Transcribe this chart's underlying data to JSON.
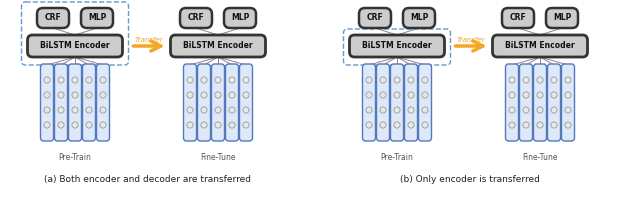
{
  "fig_width": 6.4,
  "fig_height": 2.09,
  "dpi": 100,
  "background": "#ffffff",
  "caption_a": "(a) Both encoder and decoder are transferred",
  "caption_b": "(b) Only encoder is transferred",
  "label_pretrain": "Pre-Train",
  "label_finetune": "Fine-Tune",
  "transfer_label": "Transfer",
  "bilstm_fill": "#cccccc",
  "bilstm_edge": "#333333",
  "crf_mlp_fill": "#cccccc",
  "crf_mlp_edge": "#333333",
  "arrow_color": "#f5a623",
  "dashed_border_color": "#6699cc",
  "token_border_color": "#5577bb",
  "token_fill_color": "#dde8f8",
  "token_circle_fill": "#e8e8e8",
  "token_circle_edge": "#999999",
  "line_color": "#888888",
  "caption_color": "#222222",
  "label_color": "#555555"
}
